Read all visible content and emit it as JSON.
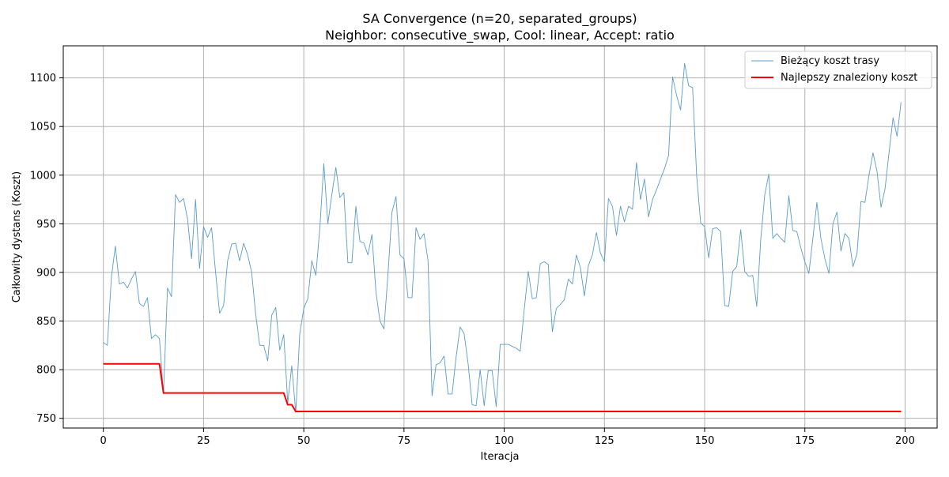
{
  "chart_data": {
    "type": "line",
    "title": "SA Convergence (n=20, separated_groups)",
    "subtitle": "Neighbor: consecutive_swap, Cool: linear, Accept: ratio",
    "xlabel": "Iteracja",
    "ylabel": "Całkowity dystans (Koszt)",
    "xlim": [
      -10,
      208
    ],
    "ylim": [
      740,
      1133
    ],
    "xticks": [
      0,
      25,
      50,
      75,
      100,
      125,
      150,
      175,
      200
    ],
    "yticks": [
      750,
      800,
      850,
      900,
      950,
      1000,
      1050,
      1100
    ],
    "grid": true,
    "legend_position": "top-right",
    "series": [
      {
        "name": "Bieżący koszt trasy",
        "color": "#5b9bc8",
        "style": "thin",
        "x_start": 0,
        "values": [
          828,
          825,
          895,
          927,
          888,
          890,
          884,
          893,
          901,
          868,
          865,
          874,
          832,
          836,
          832,
          775,
          884,
          875,
          980,
          972,
          976,
          955,
          914,
          975,
          904,
          947,
          936,
          946,
          900,
          858,
          866,
          912,
          929,
          930,
          912,
          930,
          918,
          900,
          857,
          825,
          825,
          809,
          856,
          864,
          820,
          836,
          766,
          804,
          756,
          837,
          863,
          873,
          912,
          897,
          945,
          1012,
          950,
          980,
          1008,
          977,
          982,
          910,
          910,
          968,
          932,
          930,
          918,
          939,
          880,
          850,
          842,
          898,
          962,
          978,
          918,
          914,
          874,
          874,
          946,
          934,
          940,
          912,
          773,
          805,
          807,
          814,
          775,
          775,
          813,
          844,
          837,
          806,
          764,
          763,
          800,
          763,
          799,
          799,
          762,
          826,
          826,
          826,
          824,
          822,
          819,
          862,
          901,
          873,
          874,
          909,
          911,
          908,
          839,
          863,
          867,
          872,
          893,
          888,
          918,
          905,
          876,
          907,
          918,
          941,
          920,
          911,
          976,
          968,
          938,
          968,
          952,
          968,
          965,
          1013,
          975,
          996,
          957,
          975,
          985,
          996,
          1007,
          1020,
          1101,
          1082,
          1067,
          1115,
          1092,
          1090,
          1000,
          951,
          947,
          915,
          945,
          946,
          942,
          866,
          865,
          901,
          906,
          944,
          901,
          896,
          897,
          865,
          934,
          980,
          1001,
          935,
          940,
          935,
          931,
          979,
          943,
          942,
          925,
          911,
          899,
          935,
          972,
          935,
          914,
          899,
          950,
          962,
          922,
          940,
          935,
          906,
          919,
          973,
          972,
          1000,
          1023,
          1004,
          967,
          986,
          1023,
          1059,
          1040,
          1075
        ]
      },
      {
        "name": "Najlepszy znaleziony koszt",
        "color": "#ff0000",
        "style": "thick",
        "x_start": 0,
        "values": [
          806,
          806,
          806,
          806,
          806,
          806,
          806,
          806,
          806,
          806,
          806,
          806,
          806,
          806,
          806,
          776,
          776,
          776,
          776,
          776,
          776,
          776,
          776,
          776,
          776,
          776,
          776,
          776,
          776,
          776,
          776,
          776,
          776,
          776,
          776,
          776,
          776,
          776,
          776,
          776,
          776,
          776,
          776,
          776,
          776,
          776,
          764,
          764,
          757,
          757,
          757,
          757,
          757,
          757,
          757,
          757,
          757,
          757,
          757,
          757,
          757,
          757,
          757,
          757,
          757,
          757,
          757,
          757,
          757,
          757,
          757,
          757,
          757,
          757,
          757,
          757,
          757,
          757,
          757,
          757,
          757,
          757,
          757,
          757,
          757,
          757,
          757,
          757,
          757,
          757,
          757,
          757,
          757,
          757,
          757,
          757,
          757,
          757,
          757,
          757,
          757,
          757,
          757,
          757,
          757,
          757,
          757,
          757,
          757,
          757,
          757,
          757,
          757,
          757,
          757,
          757,
          757,
          757,
          757,
          757,
          757,
          757,
          757,
          757,
          757,
          757,
          757,
          757,
          757,
          757,
          757,
          757,
          757,
          757,
          757,
          757,
          757,
          757,
          757,
          757,
          757,
          757,
          757,
          757,
          757,
          757,
          757,
          757,
          757,
          757,
          757,
          757,
          757,
          757,
          757,
          757,
          757,
          757,
          757,
          757,
          757,
          757,
          757,
          757,
          757,
          757,
          757,
          757,
          757,
          757,
          757,
          757,
          757,
          757,
          757,
          757,
          757,
          757,
          757,
          757,
          757,
          757,
          757,
          757,
          757,
          757,
          757,
          757,
          757,
          757,
          757,
          757,
          757,
          757,
          757,
          757,
          757,
          757,
          757,
          757
        ]
      }
    ]
  }
}
